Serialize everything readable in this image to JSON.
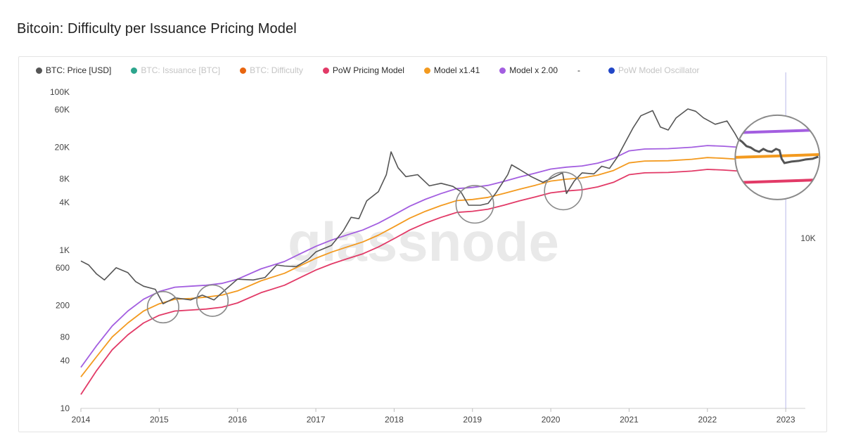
{
  "title": "Bitcoin: Difficulty per Issuance Pricing Model",
  "watermark": "glassnode",
  "legend": [
    {
      "label": "BTC: Price [USD]",
      "color": "#555555",
      "active": true
    },
    {
      "label": "BTC: Issuance [BTC]",
      "color": "#2ca58d",
      "active": false
    },
    {
      "label": "BTC: Difficulty",
      "color": "#e8650f",
      "active": false
    },
    {
      "label": "PoW Pricing Model",
      "color": "#e23a67",
      "active": true
    },
    {
      "label": "Model x1.41",
      "color": "#f39a1f",
      "active": true
    },
    {
      "label": "Model x 2.00",
      "color": "#a35ee0",
      "active": true
    },
    {
      "label": "-",
      "color": "",
      "active": true,
      "separator": true
    },
    {
      "label": "PoW Model Oscillator",
      "color": "#2146c7",
      "active": false
    }
  ],
  "chart_data": {
    "type": "line",
    "title": "Bitcoin: Difficulty per Issuance Pricing Model",
    "y_scale": "log",
    "ylim": [
      10,
      150000
    ],
    "y_ticks": [
      {
        "value": 10,
        "label": "10"
      },
      {
        "value": 40,
        "label": "40"
      },
      {
        "value": 80,
        "label": "80"
      },
      {
        "value": 200,
        "label": "200"
      },
      {
        "value": 600,
        "label": "600"
      },
      {
        "value": 1000,
        "label": "1K"
      },
      {
        "value": 4000,
        "label": "4K"
      },
      {
        "value": 8000,
        "label": "8K"
      },
      {
        "value": 20000,
        "label": "20K"
      },
      {
        "value": 60000,
        "label": "60K"
      },
      {
        "value": 100000,
        "label": "100K"
      }
    ],
    "right_axis_label": "10K",
    "xlim": [
      2014.0,
      2023.25
    ],
    "x_ticks": [
      "2014",
      "2015",
      "2016",
      "2017",
      "2018",
      "2019",
      "2020",
      "2021",
      "2022",
      "2023"
    ],
    "series": [
      {
        "name": "BTC: Price [USD]",
        "color": "#555555",
        "points": [
          [
            2014.0,
            730
          ],
          [
            2014.1,
            650
          ],
          [
            2014.2,
            500
          ],
          [
            2014.3,
            420
          ],
          [
            2014.45,
            600
          ],
          [
            2014.6,
            520
          ],
          [
            2014.7,
            400
          ],
          [
            2014.8,
            350
          ],
          [
            2014.95,
            320
          ],
          [
            2015.05,
            210
          ],
          [
            2015.2,
            250
          ],
          [
            2015.4,
            235
          ],
          [
            2015.55,
            270
          ],
          [
            2015.7,
            235
          ],
          [
            2015.85,
            320
          ],
          [
            2016.0,
            430
          ],
          [
            2016.2,
            420
          ],
          [
            2016.35,
            450
          ],
          [
            2016.5,
            650
          ],
          [
            2016.6,
            630
          ],
          [
            2016.75,
            620
          ],
          [
            2016.9,
            760
          ],
          [
            2017.0,
            950
          ],
          [
            2017.2,
            1150
          ],
          [
            2017.35,
            1750
          ],
          [
            2017.45,
            2600
          ],
          [
            2017.55,
            2500
          ],
          [
            2017.65,
            4200
          ],
          [
            2017.8,
            5500
          ],
          [
            2017.9,
            9000
          ],
          [
            2017.96,
            17500
          ],
          [
            2018.05,
            11000
          ],
          [
            2018.15,
            8500
          ],
          [
            2018.3,
            9000
          ],
          [
            2018.45,
            6500
          ],
          [
            2018.6,
            7000
          ],
          [
            2018.75,
            6400
          ],
          [
            2018.85,
            5500
          ],
          [
            2018.95,
            3700
          ],
          [
            2019.1,
            3700
          ],
          [
            2019.2,
            3900
          ],
          [
            2019.3,
            5300
          ],
          [
            2019.45,
            9000
          ],
          [
            2019.5,
            12000
          ],
          [
            2019.6,
            10500
          ],
          [
            2019.75,
            8500
          ],
          [
            2019.9,
            7200
          ],
          [
            2020.05,
            8500
          ],
          [
            2020.15,
            9500
          ],
          [
            2020.2,
            5200
          ],
          [
            2020.3,
            7500
          ],
          [
            2020.4,
            9500
          ],
          [
            2020.55,
            9200
          ],
          [
            2020.65,
            11500
          ],
          [
            2020.75,
            10800
          ],
          [
            2020.85,
            15000
          ],
          [
            2020.95,
            23000
          ],
          [
            2021.05,
            35000
          ],
          [
            2021.15,
            50000
          ],
          [
            2021.3,
            58000
          ],
          [
            2021.4,
            36000
          ],
          [
            2021.5,
            33000
          ],
          [
            2021.6,
            47000
          ],
          [
            2021.75,
            61000
          ],
          [
            2021.85,
            57000
          ],
          [
            2021.95,
            47000
          ],
          [
            2022.1,
            39000
          ],
          [
            2022.25,
            43000
          ],
          [
            2022.35,
            30000
          ],
          [
            2022.45,
            20000
          ],
          [
            2022.55,
            22000
          ],
          [
            2022.7,
            19500
          ],
          [
            2022.85,
            16500
          ],
          [
            2022.95,
            16800
          ],
          [
            2023.05,
            21000
          ],
          [
            2023.1,
            23000
          ]
        ]
      },
      {
        "name": "PoW Pricing Model",
        "color": "#e23a67",
        "points": [
          [
            2014.0,
            15
          ],
          [
            2014.2,
            30
          ],
          [
            2014.4,
            55
          ],
          [
            2014.6,
            85
          ],
          [
            2014.8,
            120
          ],
          [
            2015.0,
            150
          ],
          [
            2015.2,
            170
          ],
          [
            2015.4,
            175
          ],
          [
            2015.6,
            180
          ],
          [
            2015.8,
            190
          ],
          [
            2016.0,
            215
          ],
          [
            2016.3,
            290
          ],
          [
            2016.6,
            360
          ],
          [
            2016.8,
            450
          ],
          [
            2017.0,
            560
          ],
          [
            2017.2,
            670
          ],
          [
            2017.4,
            780
          ],
          [
            2017.6,
            900
          ],
          [
            2017.8,
            1100
          ],
          [
            2018.0,
            1400
          ],
          [
            2018.2,
            1800
          ],
          [
            2018.4,
            2200
          ],
          [
            2018.6,
            2600
          ],
          [
            2018.8,
            3000
          ],
          [
            2019.0,
            3100
          ],
          [
            2019.2,
            3300
          ],
          [
            2019.4,
            3700
          ],
          [
            2019.6,
            4200
          ],
          [
            2019.8,
            4700
          ],
          [
            2020.0,
            5300
          ],
          [
            2020.2,
            5600
          ],
          [
            2020.4,
            5800
          ],
          [
            2020.6,
            6300
          ],
          [
            2020.8,
            7200
          ],
          [
            2021.0,
            9000
          ],
          [
            2021.2,
            9500
          ],
          [
            2021.5,
            9600
          ],
          [
            2021.8,
            10000
          ],
          [
            2022.0,
            10500
          ],
          [
            2022.2,
            10300
          ],
          [
            2022.4,
            10000
          ],
          [
            2022.6,
            10800
          ],
          [
            2022.8,
            11500
          ],
          [
            2023.0,
            12000
          ],
          [
            2023.1,
            12200
          ]
        ]
      },
      {
        "name": "Model x1.41",
        "color": "#f39a1f",
        "points": [
          [
            2014.0,
            25
          ],
          [
            2014.2,
            45
          ],
          [
            2014.4,
            80
          ],
          [
            2014.6,
            120
          ],
          [
            2014.8,
            170
          ],
          [
            2015.0,
            210
          ],
          [
            2015.2,
            240
          ],
          [
            2015.4,
            245
          ],
          [
            2015.6,
            255
          ],
          [
            2015.8,
            270
          ],
          [
            2016.0,
            305
          ],
          [
            2016.3,
            410
          ],
          [
            2016.6,
            510
          ],
          [
            2016.8,
            635
          ],
          [
            2017.0,
            790
          ],
          [
            2017.2,
            945
          ],
          [
            2017.4,
            1100
          ],
          [
            2017.6,
            1270
          ],
          [
            2017.8,
            1550
          ],
          [
            2018.0,
            1975
          ],
          [
            2018.2,
            2540
          ],
          [
            2018.4,
            3100
          ],
          [
            2018.6,
            3670
          ],
          [
            2018.8,
            4230
          ],
          [
            2019.0,
            4370
          ],
          [
            2019.2,
            4650
          ],
          [
            2019.4,
            5200
          ],
          [
            2019.6,
            5900
          ],
          [
            2019.8,
            6600
          ],
          [
            2020.0,
            7470
          ],
          [
            2020.2,
            7900
          ],
          [
            2020.4,
            8200
          ],
          [
            2020.6,
            8900
          ],
          [
            2020.8,
            10150
          ],
          [
            2021.0,
            12700
          ],
          [
            2021.2,
            13400
          ],
          [
            2021.5,
            13500
          ],
          [
            2021.8,
            14100
          ],
          [
            2022.0,
            14800
          ],
          [
            2022.2,
            14500
          ],
          [
            2022.4,
            14100
          ],
          [
            2022.6,
            15200
          ],
          [
            2022.8,
            16200
          ],
          [
            2023.0,
            16900
          ],
          [
            2023.1,
            17200
          ]
        ]
      },
      {
        "name": "Model x 2.00",
        "color": "#a35ee0",
        "points": [
          [
            2014.0,
            33
          ],
          [
            2014.2,
            62
          ],
          [
            2014.4,
            110
          ],
          [
            2014.6,
            170
          ],
          [
            2014.8,
            240
          ],
          [
            2015.0,
            300
          ],
          [
            2015.2,
            340
          ],
          [
            2015.4,
            350
          ],
          [
            2015.6,
            360
          ],
          [
            2015.8,
            380
          ],
          [
            2016.0,
            430
          ],
          [
            2016.3,
            580
          ],
          [
            2016.6,
            720
          ],
          [
            2016.8,
            900
          ],
          [
            2017.0,
            1120
          ],
          [
            2017.2,
            1340
          ],
          [
            2017.4,
            1560
          ],
          [
            2017.6,
            1800
          ],
          [
            2017.8,
            2200
          ],
          [
            2018.0,
            2800
          ],
          [
            2018.2,
            3600
          ],
          [
            2018.4,
            4400
          ],
          [
            2018.6,
            5200
          ],
          [
            2018.8,
            6000
          ],
          [
            2019.0,
            6200
          ],
          [
            2019.2,
            6600
          ],
          [
            2019.4,
            7400
          ],
          [
            2019.6,
            8400
          ],
          [
            2019.8,
            9400
          ],
          [
            2020.0,
            10600
          ],
          [
            2020.2,
            11200
          ],
          [
            2020.4,
            11600
          ],
          [
            2020.6,
            12600
          ],
          [
            2020.8,
            14400
          ],
          [
            2021.0,
            18000
          ],
          [
            2021.2,
            19000
          ],
          [
            2021.5,
            19200
          ],
          [
            2021.8,
            20000
          ],
          [
            2022.0,
            21000
          ],
          [
            2022.2,
            20600
          ],
          [
            2022.4,
            20000
          ],
          [
            2022.6,
            21600
          ],
          [
            2022.8,
            23000
          ],
          [
            2023.0,
            24000
          ],
          [
            2023.1,
            24400
          ]
        ]
      }
    ],
    "highlight_circles": [
      {
        "x": 2015.05,
        "y": 190,
        "r_data_years": 0.2
      },
      {
        "x": 2015.68,
        "y": 230,
        "r_data_years": 0.2
      },
      {
        "x": 2019.03,
        "y": 3800,
        "r_data_years": 0.24
      },
      {
        "x": 2020.16,
        "y": 5600,
        "r_data_years": 0.24
      }
    ],
    "zoom_circle": {
      "x": 2022.75,
      "y": 14000
    }
  }
}
